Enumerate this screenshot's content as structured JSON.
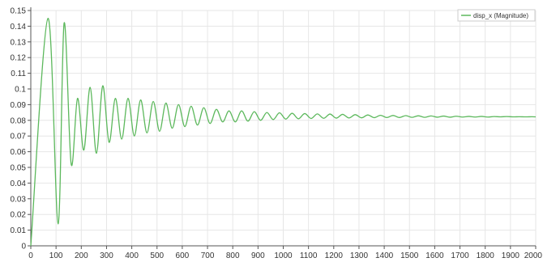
{
  "chart_data": {
    "type": "line",
    "title": "",
    "xlabel": "",
    "ylabel": "",
    "xlim": [
      0,
      2000
    ],
    "ylim": [
      0,
      0.15
    ],
    "x_ticks": [
      0,
      100,
      200,
      300,
      400,
      500,
      600,
      700,
      800,
      900,
      1000,
      1100,
      1200,
      1300,
      1400,
      1500,
      1600,
      1700,
      1800,
      1900,
      2000
    ],
    "y_ticks": [
      0,
      0.01,
      0.02,
      0.03,
      0.04,
      0.05,
      0.06,
      0.07,
      0.08,
      0.09,
      0.1,
      0.11,
      0.12,
      0.13,
      0.14,
      0.15
    ],
    "x_tick_labels": [
      "0",
      "100",
      "200",
      "300",
      "400",
      "500",
      "600",
      "700",
      "800",
      "900",
      "1000",
      "1100",
      "1200",
      "1300",
      "1400",
      "1500",
      "1600",
      "1700",
      "1800",
      "1900",
      "2000"
    ],
    "y_tick_labels": [
      "0",
      "0.01",
      "0.02",
      "0.03",
      "0.04",
      "0.05",
      "0.06",
      "0.07",
      "0.08",
      "0.09",
      "0.1",
      "0.11",
      "0.12",
      "0.13",
      "0.14",
      "0.15"
    ],
    "grid": true,
    "legend_position": "top-right",
    "series": [
      {
        "name": "disp_x (Magnitude)",
        "color": "#5cb85c",
        "x": [
          0,
          68,
          108,
          132,
          160,
          185,
          210,
          235,
          260,
          285,
          310,
          335,
          360,
          385,
          410,
          435,
          460,
          485,
          510,
          535,
          560,
          585,
          610,
          635,
          660,
          685,
          710,
          735,
          760,
          785,
          810,
          835,
          860,
          885,
          910,
          935,
          960,
          985,
          1010,
          1035,
          1060,
          1085,
          1110,
          1135,
          1160,
          1185,
          1210,
          1235,
          1260,
          1285,
          1310,
          1335,
          1360,
          1385,
          1410,
          1435,
          1460,
          1485,
          1510,
          1535,
          1560,
          1585,
          1610,
          1635,
          1660,
          1685,
          1710,
          1735,
          1760,
          1785,
          1810,
          1835,
          1860,
          1885,
          1910,
          1935,
          1960,
          1985,
          2000
        ],
        "y": [
          0,
          0.145,
          0.014,
          0.142,
          0.052,
          0.094,
          0.061,
          0.101,
          0.059,
          0.102,
          0.066,
          0.094,
          0.068,
          0.094,
          0.07,
          0.093,
          0.072,
          0.092,
          0.073,
          0.091,
          0.075,
          0.09,
          0.076,
          0.089,
          0.077,
          0.088,
          0.078,
          0.087,
          0.079,
          0.086,
          0.079,
          0.086,
          0.0795,
          0.0855,
          0.08,
          0.085,
          0.0805,
          0.0848,
          0.0808,
          0.0845,
          0.081,
          0.0843,
          0.0812,
          0.0841,
          0.0813,
          0.084,
          0.0814,
          0.0838,
          0.0815,
          0.0836,
          0.0816,
          0.0834,
          0.0817,
          0.0832,
          0.0818,
          0.0831,
          0.0818,
          0.083,
          0.0819,
          0.0829,
          0.0819,
          0.0828,
          0.082,
          0.0827,
          0.082,
          0.0826,
          0.0821,
          0.0825,
          0.0821,
          0.0825,
          0.0821,
          0.0824,
          0.0822,
          0.0824,
          0.0822,
          0.0823,
          0.0822,
          0.0823,
          0.0822
        ]
      }
    ]
  }
}
